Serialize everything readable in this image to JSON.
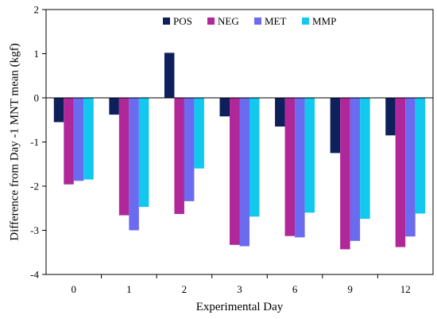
{
  "chart_data": {
    "type": "bar",
    "title": "",
    "xlabel": "Experimental Day",
    "ylabel": "Difference from Day -1 MNT mean (kgf)",
    "categories": [
      "0",
      "1",
      "2",
      "3",
      "6",
      "9",
      "12"
    ],
    "ylim": [
      -4,
      2
    ],
    "yticks": [
      -4,
      -3,
      -2,
      -1,
      0,
      1,
      2
    ],
    "grid": false,
    "legend_position": "top-right",
    "series": [
      {
        "name": "POS",
        "color": "#0f1f5c",
        "values": [
          -0.55,
          -0.38,
          1.02,
          -0.42,
          -0.65,
          -1.25,
          -0.85
        ]
      },
      {
        "name": "NEG",
        "color": "#b0279a",
        "values": [
          -1.96,
          -2.66,
          -2.63,
          -3.33,
          -3.13,
          -3.43,
          -3.38
        ]
      },
      {
        "name": "MET",
        "color": "#6b6bf0",
        "values": [
          -1.88,
          -3.0,
          -2.34,
          -3.36,
          -3.16,
          -3.24,
          -3.14
        ]
      },
      {
        "name": "MMP",
        "color": "#12c8ee",
        "values": [
          -1.85,
          -2.47,
          -1.6,
          -2.69,
          -2.6,
          -2.74,
          -2.62
        ]
      }
    ]
  }
}
